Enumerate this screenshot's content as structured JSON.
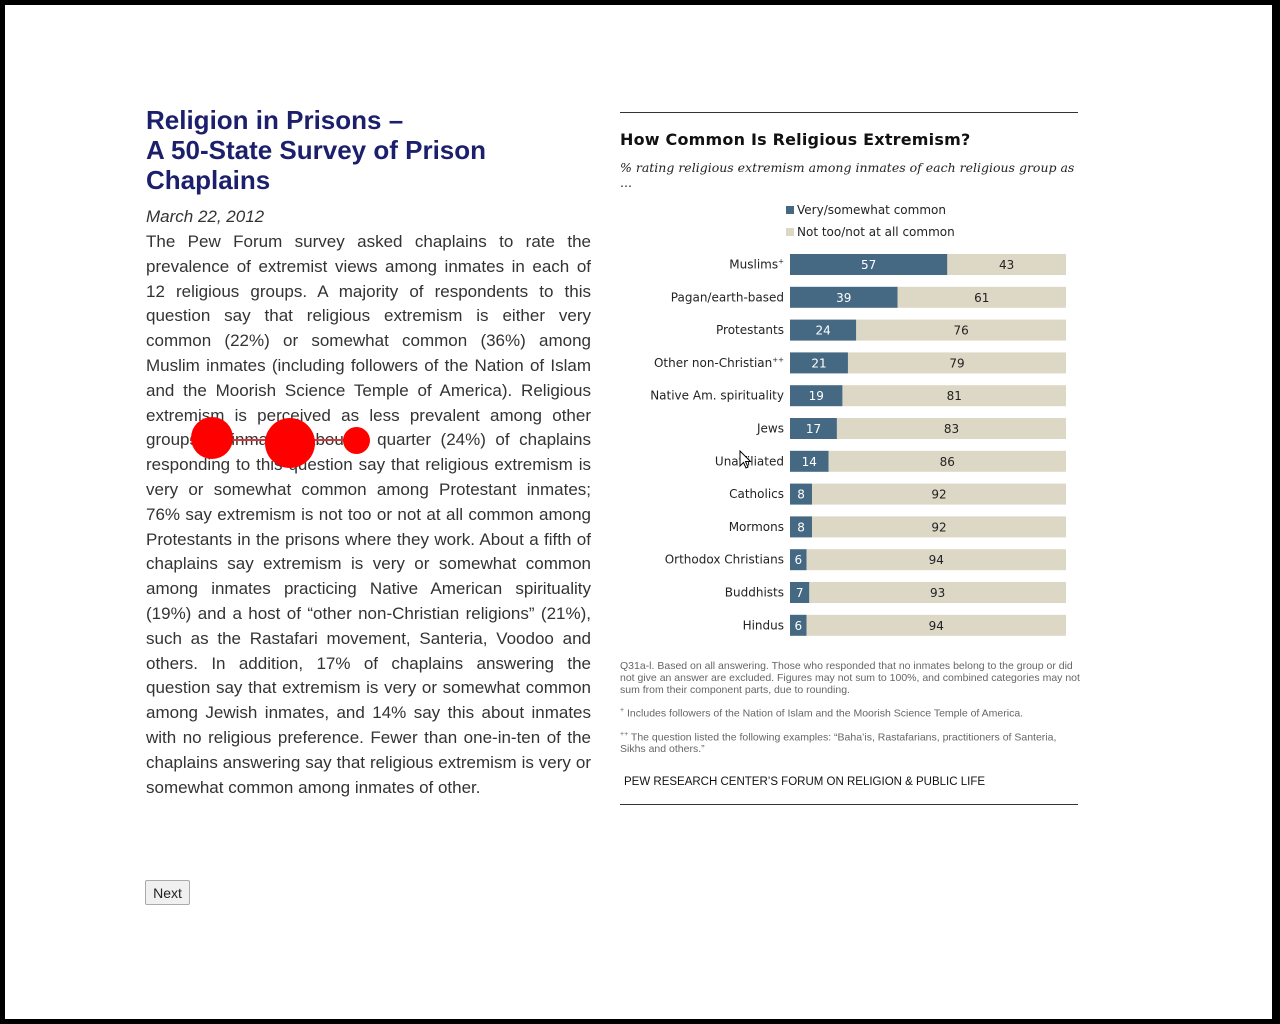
{
  "article": {
    "title_line1": "Religion in Prisons –",
    "title_line2": "A 50-State Survey of Prison",
    "title_line3": "Chaplains",
    "date": "March 22, 2012",
    "body": "The Pew Forum survey asked chaplains to rate the prevalence of extremist views among inmates in each of 12 religious groups. A majority of respondents to this question say that religious extremism is either very common (22%) or somewhat common (36%) among Muslim inmates (including followers of the Nation of Islam and the Moorish Science Temple of America). Religious extremism is perceived as less prevalent among other groups of inmates. About a quarter (24%) of chaplains responding to this question say that religious extremism is very or somewhat common among Protestant inmates; 76% say extremism is not too or not at all common among Protestants in the prisons where they work. About a fifth of chaplains say extremism is very or somewhat common among inmates practicing Native American spirituality (19%) and a host of “other non-Christian religions” (21%), such as the Rastafari movement, Santeria, Voodoo and others. In addition, 17% of chaplains answering the question say that extremism is very or somewhat common among Jewish inmates, and 14% say this about inmates with no religious preference. Fewer than one-in-ten of the chaplains answering say that religious extremism is very or somewhat common among inmates of other."
  },
  "navigation": {
    "next_label": "Next"
  },
  "colors": {
    "title": "#1c1f6b",
    "series_common": "#456883",
    "series_not_common": "#ddd7c6",
    "annotation_dots": "#ff0000"
  },
  "chart_data": {
    "type": "bar",
    "orientation": "horizontal",
    "stacked": true,
    "title": "How Common Is Religious Extremism?",
    "subtitle": "% rating religious extremism among inmates of each religious group as ...",
    "legend_position": "top",
    "categories": [
      "Muslims",
      "Pagan/earth-based",
      "Protestants",
      "Other non-Christian",
      "Native Am. spirituality",
      "Jews",
      "Unaffiliated",
      "Catholics",
      "Mormons",
      "Orthodox Christians",
      "Buddhists",
      "Hindus"
    ],
    "category_marks": [
      "+",
      "",
      "",
      "++",
      "",
      "",
      "",
      "",
      "",
      "",
      "",
      ""
    ],
    "series": [
      {
        "name": "Very/somewhat common",
        "values": [
          57,
          39,
          24,
          21,
          19,
          17,
          14,
          8,
          8,
          6,
          7,
          6
        ]
      },
      {
        "name": "Not too/not at all common",
        "values": [
          43,
          61,
          76,
          79,
          81,
          83,
          86,
          92,
          92,
          94,
          93,
          94
        ]
      }
    ],
    "xlim": [
      0,
      100
    ],
    "grid": false,
    "notes": {
      "main": "Q31a-l.  Based on all answering. Those who responded that no inmates belong to the group or did not give an answer are excluded. Figures may not sum to 100%, and combined categories may not sum from their component parts, due to rounding.",
      "plus_mark": "+",
      "plus_text": "Includes followers of the Nation of Islam and the Moorish Science Temple of America.",
      "double_plus_mark": "++",
      "double_plus_text": "The question listed the following examples: “Baha’is, Rastafarians, practitioners of Santeria, Sikhs and others.”"
    },
    "source": "PEW RESEARCH CENTER’S FORUM ON RELIGION & PUBLIC LIFE"
  }
}
